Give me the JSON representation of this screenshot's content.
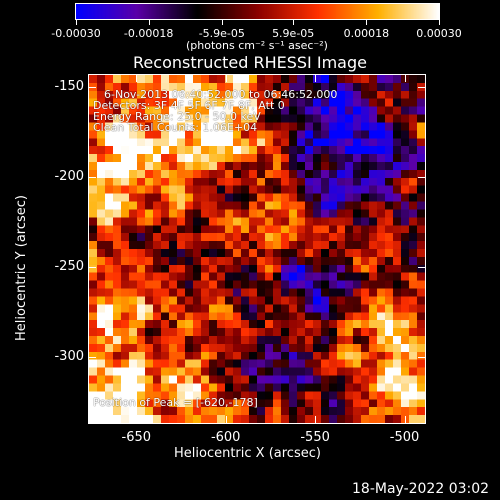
{
  "colorbar": {
    "tick_labels": [
      "-0.00030",
      "-0.00018",
      "-5.9e-05",
      "5.9e-05",
      "0.00018",
      "0.00030"
    ],
    "tick_values": [
      -0.0003,
      -0.00018,
      -5.9e-05,
      5.9e-05,
      0.00018,
      0.0003
    ],
    "range": [
      -0.0003,
      0.0003
    ],
    "units_label": "(photons cm⁻² s⁻¹ asec⁻²)",
    "colors": [
      "#0000ff",
      "#5a00a8",
      "#000000",
      "#8a0000",
      "#ff3000",
      "#ffb000",
      "#ffffff"
    ]
  },
  "plot": {
    "title": "Reconstructed RHESSI Image",
    "xlabel": "Heliocentric X (arcsec)",
    "ylabel": "Heliocentric Y (arcsec)",
    "x_ticks": [
      "-650",
      "-600",
      "-550",
      "-500"
    ],
    "x_tick_values": [
      -650,
      -600,
      -550,
      -500
    ],
    "y_ticks": [
      "-150",
      "-200",
      "-250",
      "-300"
    ],
    "y_tick_values": [
      -150,
      -200,
      -250,
      -300
    ],
    "xlim": [
      -677,
      -488
    ],
    "ylim": [
      -337,
      -143
    ]
  },
  "annotations": {
    "time_range": "6-Nov-2013 06:40:52.000 to 06:46:52.000",
    "detectors": "Detectors: 3F 4F 5F 6F 7F 8F, Att 0",
    "energy_range": "Energy Range: 25.0 - 50.0 keV",
    "clean": "Clean    Total Counts: 1.06E+04",
    "peak": "Position of Peak = [-620,-178]"
  },
  "footer": {
    "timestamp": "18-May-2022 03:02"
  }
}
